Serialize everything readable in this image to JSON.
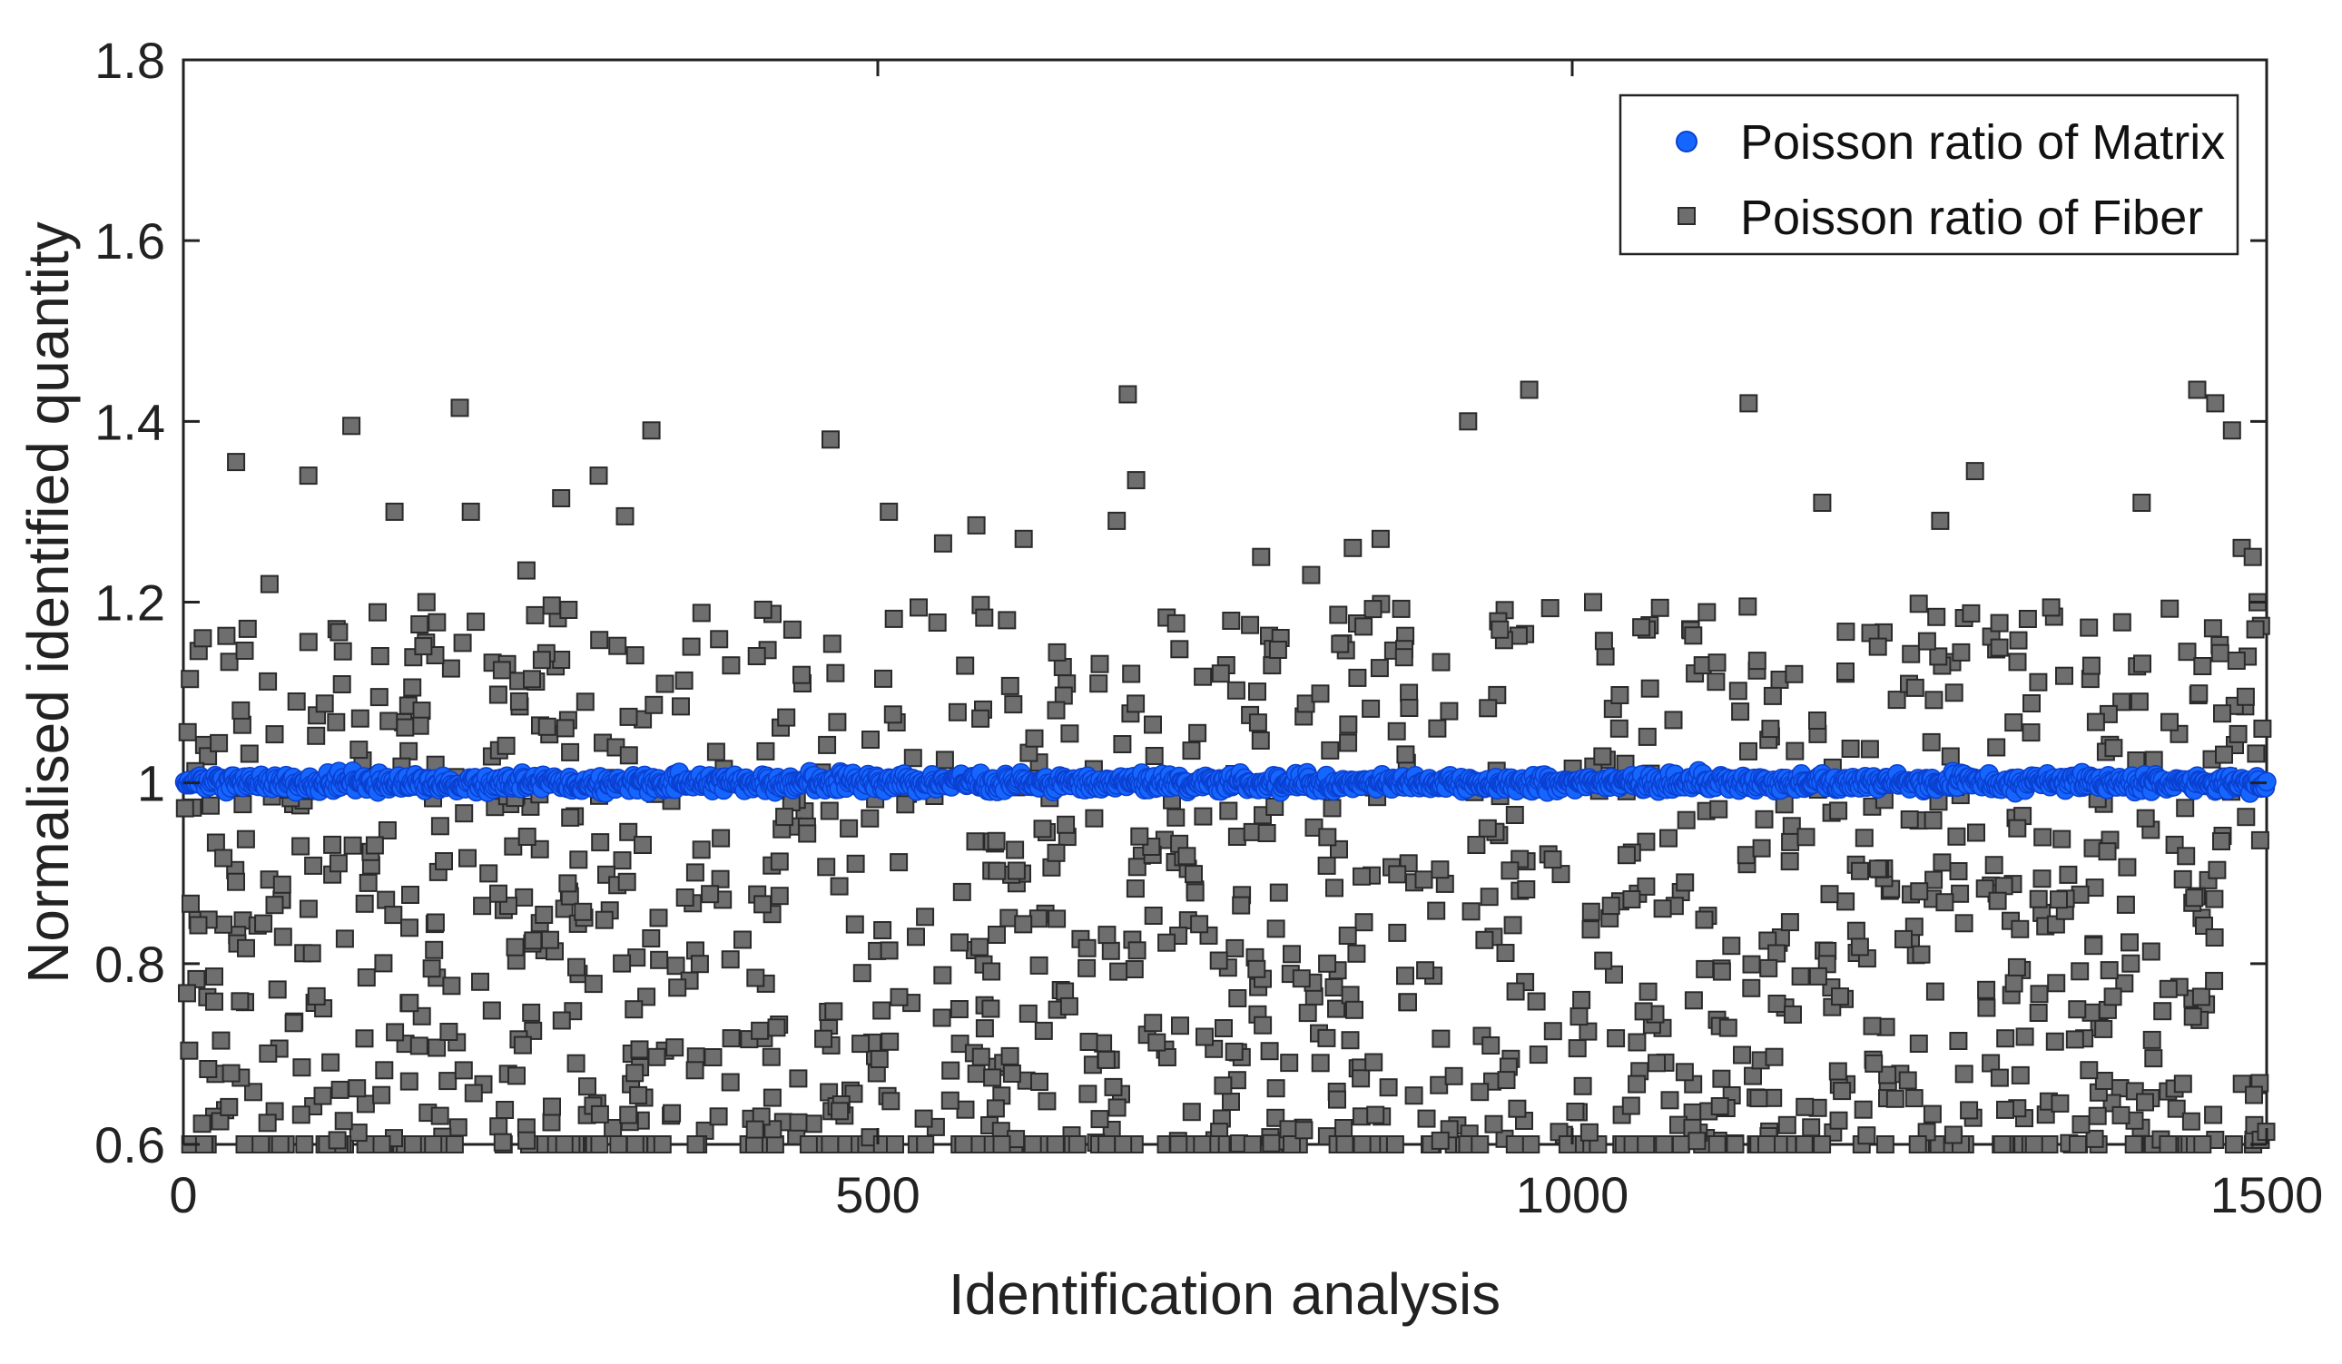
{
  "chart_data": {
    "type": "scatter",
    "xlabel": "Identification analysis",
    "ylabel": "Normalised identified quantity",
    "xlim": [
      0,
      1500
    ],
    "ylim": [
      0.6,
      1.8
    ],
    "x_ticks": [
      0,
      500,
      1000,
      1500
    ],
    "y_ticks": [
      0.6,
      0.8,
      1,
      1.2,
      1.4,
      1.6,
      1.8
    ],
    "x_tick_labels": [
      "0",
      "500",
      "1000",
      "1500"
    ],
    "y_tick_labels": [
      "0.6",
      "0.8",
      "1",
      "1.2",
      "1.4",
      "1.6",
      "1.8"
    ],
    "grid": false,
    "legend_position": "top-right",
    "series": [
      {
        "name": "Poisson ratio of Matrix",
        "marker": "circle",
        "color": "#1565ff",
        "edge_color": "#0a3fcf",
        "center": 1.0,
        "spread": 0.014,
        "count": 1500,
        "x_range": [
          1,
          1500
        ]
      },
      {
        "name": "Poisson ratio of Fiber",
        "marker": "square",
        "color": "#6e6e6e",
        "edge_color": "#2a2a2a",
        "x": [
          14,
          38,
          62,
          90,
          121,
          152,
          175,
          199,
          207,
          247,
          272,
          299,
          318,
          337,
          466,
          508,
          547,
          571,
          593,
          605,
          672,
          680,
          686,
          776,
          812,
          842,
          862,
          925,
          969,
          1015,
          1127,
          1180,
          1265,
          1290,
          1410,
          1450,
          1463,
          1475,
          1482,
          1490,
          1497
        ],
        "y": [
          1.16,
          1.355,
          1.22,
          1.34,
          1.395,
          1.3,
          1.2,
          1.415,
          1.3,
          1.235,
          1.315,
          1.34,
          1.295,
          1.39,
          1.38,
          1.3,
          1.265,
          1.285,
          1.18,
          1.27,
          1.29,
          1.43,
          1.335,
          1.25,
          1.23,
          1.26,
          1.27,
          1.4,
          1.435,
          1.2,
          1.42,
          1.31,
          1.29,
          1.345,
          1.31,
          1.435,
          1.42,
          1.39,
          1.26,
          1.25,
          1.06
        ],
        "random_fill": {
          "total_points": 1500,
          "range": [
            0.6,
            1.2
          ],
          "clipped_at_min_fraction": 0.12
        }
      }
    ]
  }
}
